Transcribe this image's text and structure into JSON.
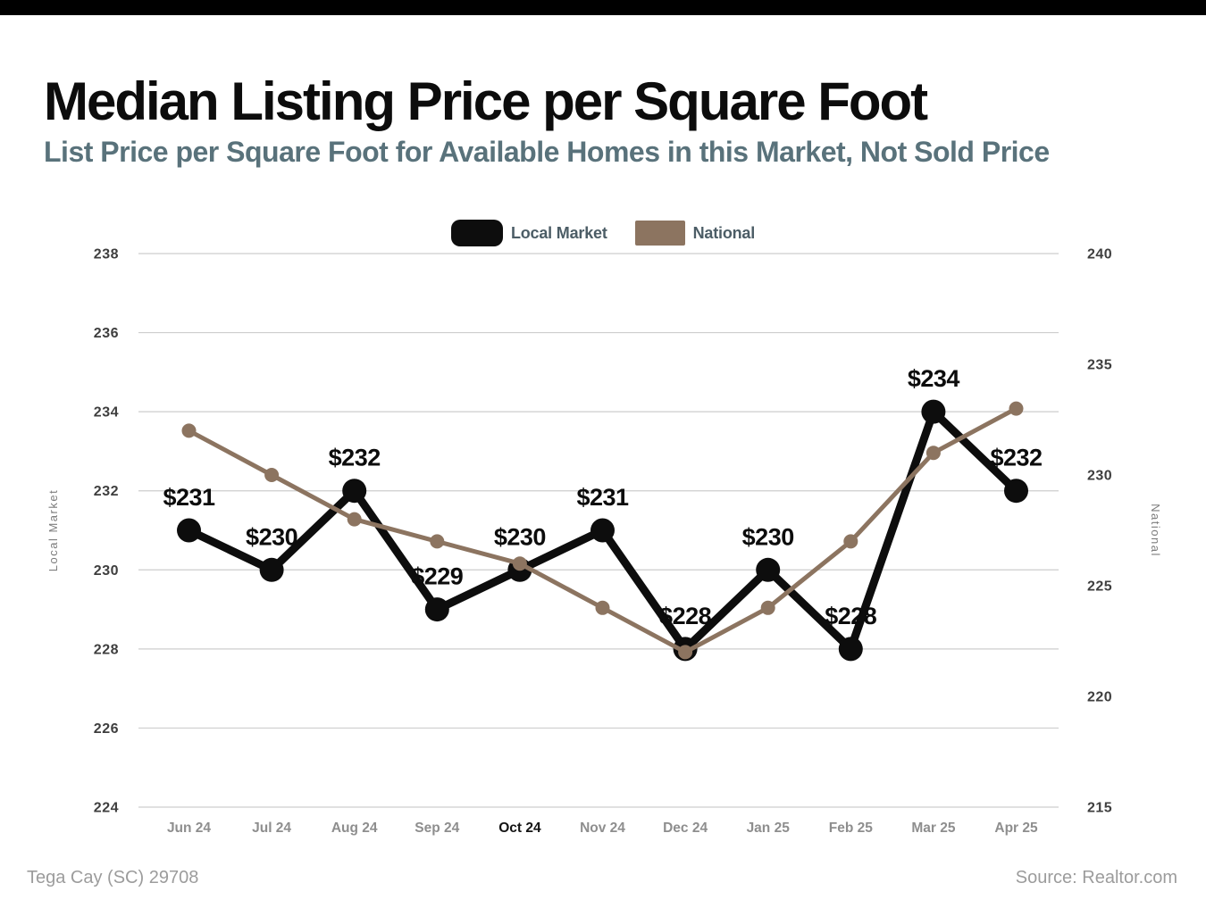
{
  "page": {
    "title": "Median Listing Price per Square Foot",
    "subtitle": "List Price per Square Foot for Available Homes in this Market, Not Sold Price",
    "footer_left": "Tega Cay (SC) 29708",
    "footer_right": "Source: Realtor.com"
  },
  "legend": {
    "items": [
      {
        "label": "Local Market",
        "color": "#0d0d0d"
      },
      {
        "label": "National",
        "color": "#8c7460"
      }
    ]
  },
  "chart_data": {
    "type": "line",
    "categories": [
      "Jun 24",
      "Jul 24",
      "Aug 24",
      "Sep 24",
      "Oct 24",
      "Nov 24",
      "Dec 24",
      "Jan 25",
      "Feb 25",
      "Mar 25",
      "Apr 25"
    ],
    "highlighted_category": "Oct 24",
    "series": [
      {
        "name": "Local Market",
        "axis": "left",
        "color": "#0d0d0d",
        "values": [
          231,
          230,
          232,
          229,
          230,
          231,
          228,
          230,
          228,
          234,
          232
        ],
        "point_labels": [
          "$231",
          "$230",
          "$232",
          "$229",
          "$230",
          "$231",
          "$228",
          "$230",
          "$228",
          "$234",
          "$232"
        ]
      },
      {
        "name": "National",
        "axis": "right",
        "color": "#8c7460",
        "values": [
          232,
          230,
          228,
          227,
          226,
          224,
          222,
          224,
          227,
          231,
          233
        ]
      }
    ],
    "left_axis": {
      "title": "Local Market",
      "ticks": [
        238,
        236,
        234,
        232,
        230,
        228,
        226,
        224
      ],
      "min": 224,
      "max": 238
    },
    "right_axis": {
      "title": "National",
      "ticks": [
        240,
        235,
        230,
        225,
        220,
        215
      ],
      "min": 215,
      "max": 240
    },
    "grid": true,
    "legend_position": "top-center"
  },
  "colors": {
    "grid": "#cdcdcd",
    "tick_label": "#3e3e3e",
    "x_label": "#8e8e8e",
    "x_label_highlight": "#141414",
    "axis_title": "#7d7d7d",
    "data_label": "#0c0c0c"
  }
}
